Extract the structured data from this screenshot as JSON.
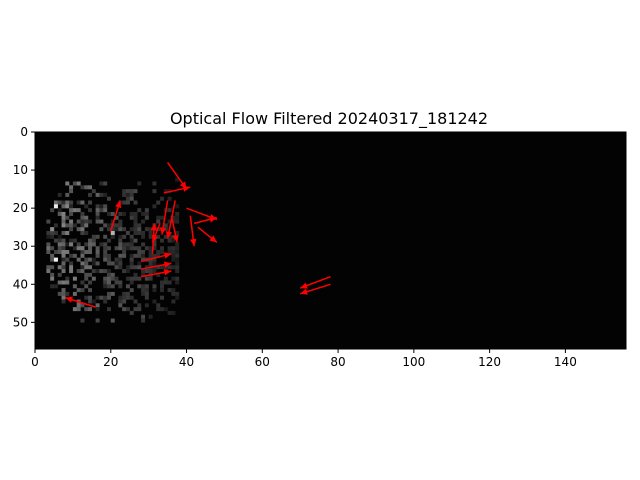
{
  "chart_data": {
    "type": "heatmap",
    "title": "Optical Flow Filtered 20240317_181242",
    "xlabel": "",
    "ylabel": "",
    "image_shape": [
      57,
      156
    ],
    "xlim": [
      0,
      156
    ],
    "ylim": [
      57,
      0
    ],
    "x_ticks": [
      0,
      20,
      40,
      60,
      80,
      100,
      120,
      140
    ],
    "y_ticks": [
      0,
      10,
      20,
      30,
      40,
      50
    ],
    "background_color": "#030303",
    "arrow_color": "#ff0000",
    "grid": false,
    "bright_pixels": [
      {
        "x": 5,
        "y": 19,
        "v": 0.92
      },
      {
        "x": 5,
        "y": 33,
        "v": 0.95
      },
      {
        "x": 20,
        "y": 26,
        "v": 0.7
      },
      {
        "x": 4,
        "y": 25,
        "v": 0.55
      },
      {
        "x": 12,
        "y": 30,
        "v": 0.45
      },
      {
        "x": 7,
        "y": 21,
        "v": 0.5
      },
      {
        "x": 9,
        "y": 35,
        "v": 0.48
      }
    ],
    "vectors": [
      {
        "x": 20,
        "y": 26,
        "dx": 2.5,
        "dy": -8
      },
      {
        "x": 35,
        "y": 8,
        "dx": 5,
        "dy": 7
      },
      {
        "x": 34,
        "y": 16,
        "dx": 7,
        "dy": -1.5
      },
      {
        "x": 33,
        "y": 24,
        "dx": -2,
        "dy": 5
      },
      {
        "x": 35,
        "y": 18,
        "dx": -1.5,
        "dy": 9
      },
      {
        "x": 37,
        "y": 18,
        "dx": -2,
        "dy": 10
      },
      {
        "x": 36,
        "y": 22,
        "dx": 1.5,
        "dy": 7
      },
      {
        "x": 40,
        "y": 20,
        "dx": 8,
        "dy": 3
      },
      {
        "x": 42,
        "y": 24,
        "dx": 6,
        "dy": -1.5
      },
      {
        "x": 41,
        "y": 22,
        "dx": 1,
        "dy": 8
      },
      {
        "x": 43,
        "y": 25,
        "dx": 5,
        "dy": 4
      },
      {
        "x": 31,
        "y": 32,
        "dx": 0.5,
        "dy": -8
      },
      {
        "x": 28,
        "y": 34,
        "dx": 8,
        "dy": -2
      },
      {
        "x": 28,
        "y": 36,
        "dx": 8,
        "dy": -1.5
      },
      {
        "x": 28,
        "y": 38,
        "dx": 8,
        "dy": -1.5
      },
      {
        "x": 16,
        "y": 46,
        "dx": -8,
        "dy": -2.5
      },
      {
        "x": 78,
        "y": 38,
        "dx": -8,
        "dy": 3
      },
      {
        "x": 78,
        "y": 40,
        "dx": -8,
        "dy": 2.5
      }
    ]
  }
}
